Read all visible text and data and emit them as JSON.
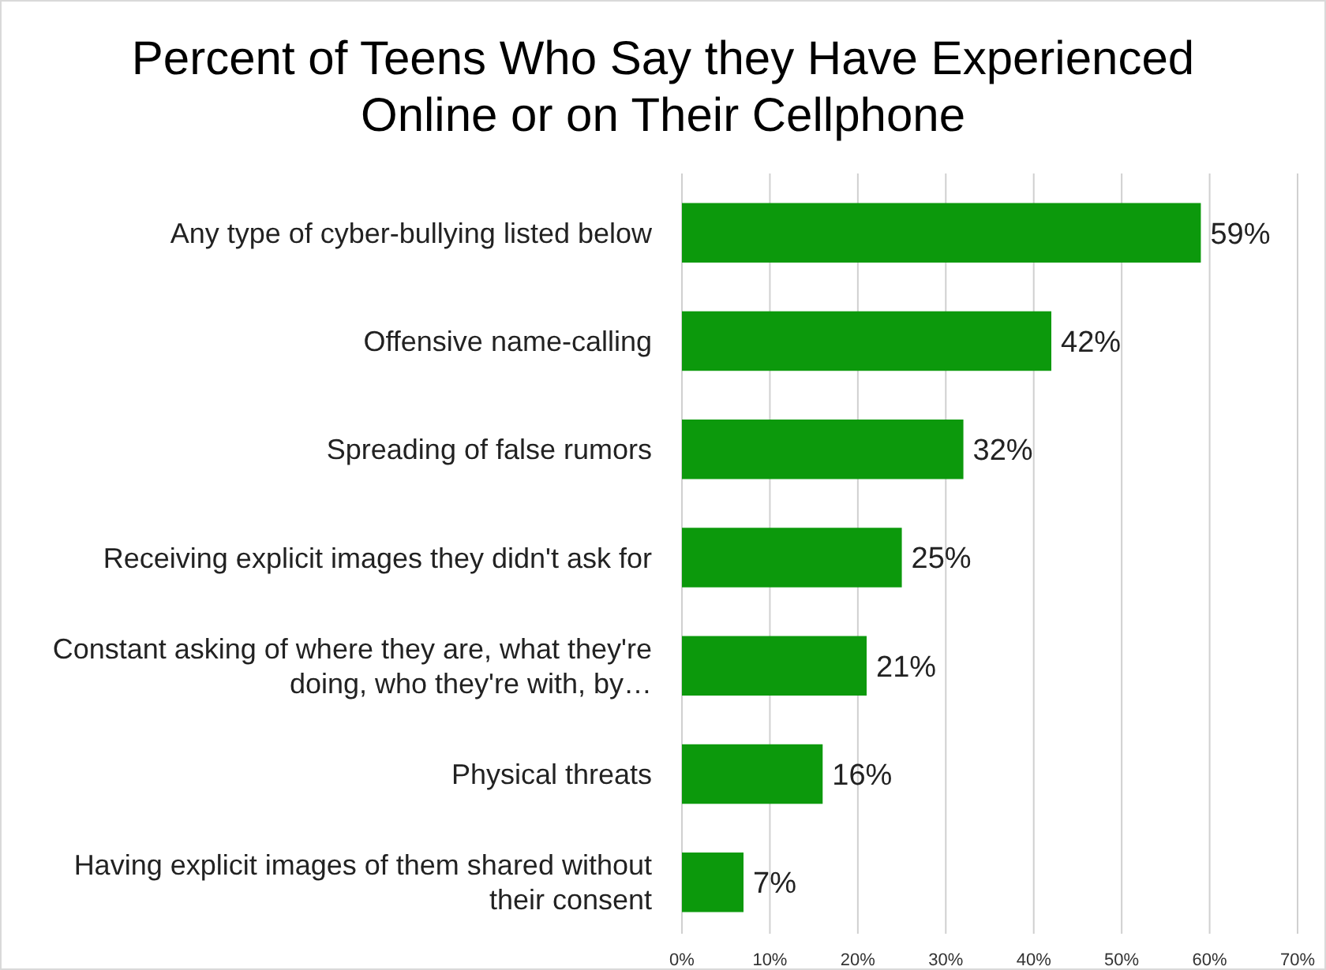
{
  "chart_data": {
    "type": "bar",
    "orientation": "horizontal",
    "title": "Percent of Teens Who Say they Have Experienced Online or on Their Cellphone",
    "categories": [
      "Any type of cyber-bullying listed below",
      "Offensive name-calling",
      "Spreading of false rumors",
      "Receiving explicit images they didn't ask for",
      "Constant asking of where they are, what they're doing, who they're with, by…",
      "Physical threats",
      "Having explicit images of them shared without their consent"
    ],
    "values": [
      59,
      42,
      32,
      25,
      21,
      16,
      7
    ],
    "value_labels": [
      "59%",
      "42%",
      "32%",
      "25%",
      "21%",
      "16%",
      "7%"
    ],
    "color": "#0c990c",
    "xlim": [
      0,
      70
    ],
    "xticks": [
      {
        "value": 0,
        "label": "0%"
      },
      {
        "value": 10,
        "label": "10%"
      },
      {
        "value": 20,
        "label": "20%"
      },
      {
        "value": 30,
        "label": "30%"
      },
      {
        "value": 40,
        "label": "40%"
      },
      {
        "value": 50,
        "label": "50%"
      },
      {
        "value": 60,
        "label": "60%"
      },
      {
        "value": 70,
        "label": "70%"
      }
    ],
    "grid": "x"
  }
}
